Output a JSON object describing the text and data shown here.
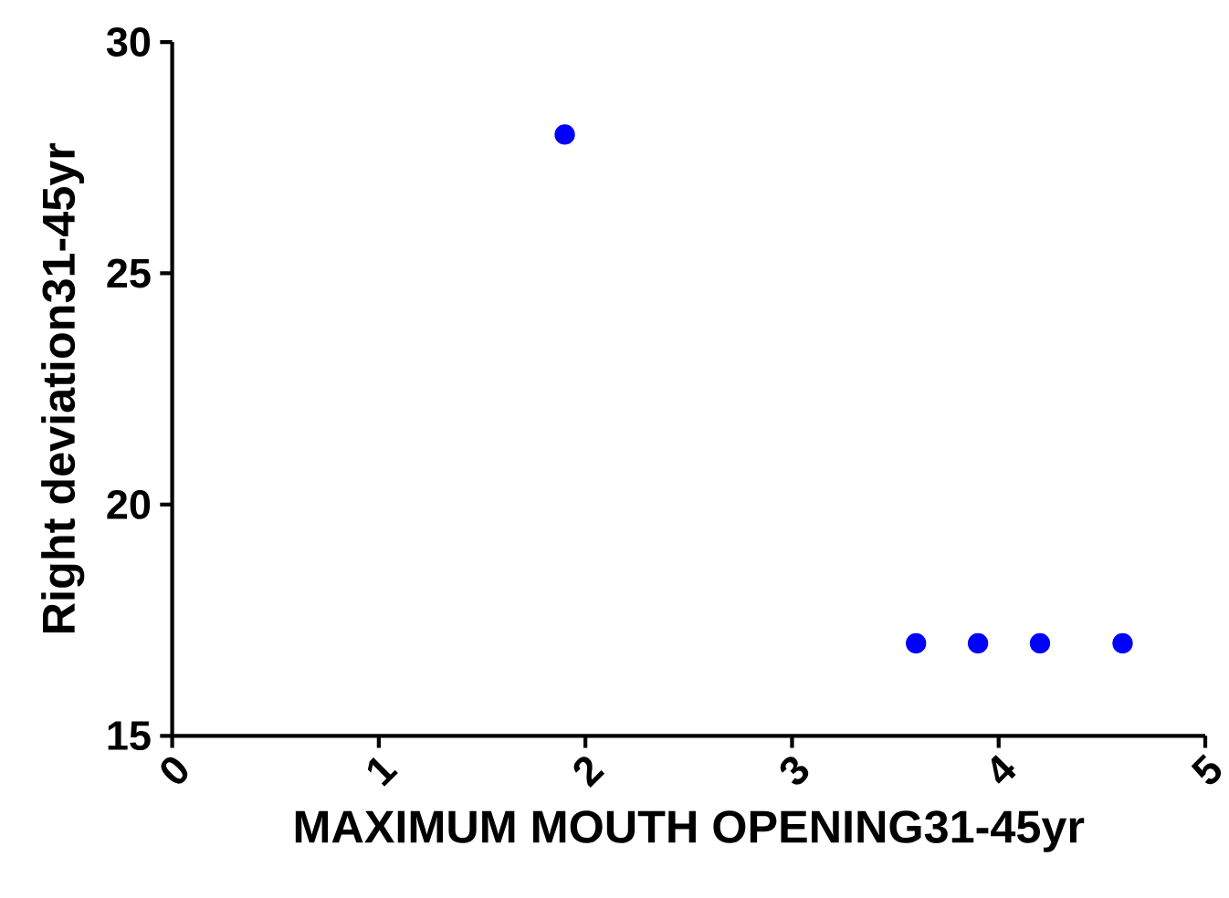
{
  "chart_data": {
    "type": "scatter",
    "xlabel": "MAXIMUM MOUTH OPENING31-45yr",
    "ylabel": "Right deviation31-45yr",
    "x": [
      1.9,
      3.6,
      3.9,
      4.2,
      4.6
    ],
    "values": [
      28,
      17,
      17,
      17,
      17
    ],
    "color": "#0000ff",
    "marker": "circle",
    "xlim": [
      0,
      5
    ],
    "ylim": [
      15,
      30
    ],
    "xticks": [
      0,
      1,
      2,
      3,
      4,
      5
    ],
    "yticks": [
      15,
      20,
      25,
      30
    ],
    "grid": false
  }
}
